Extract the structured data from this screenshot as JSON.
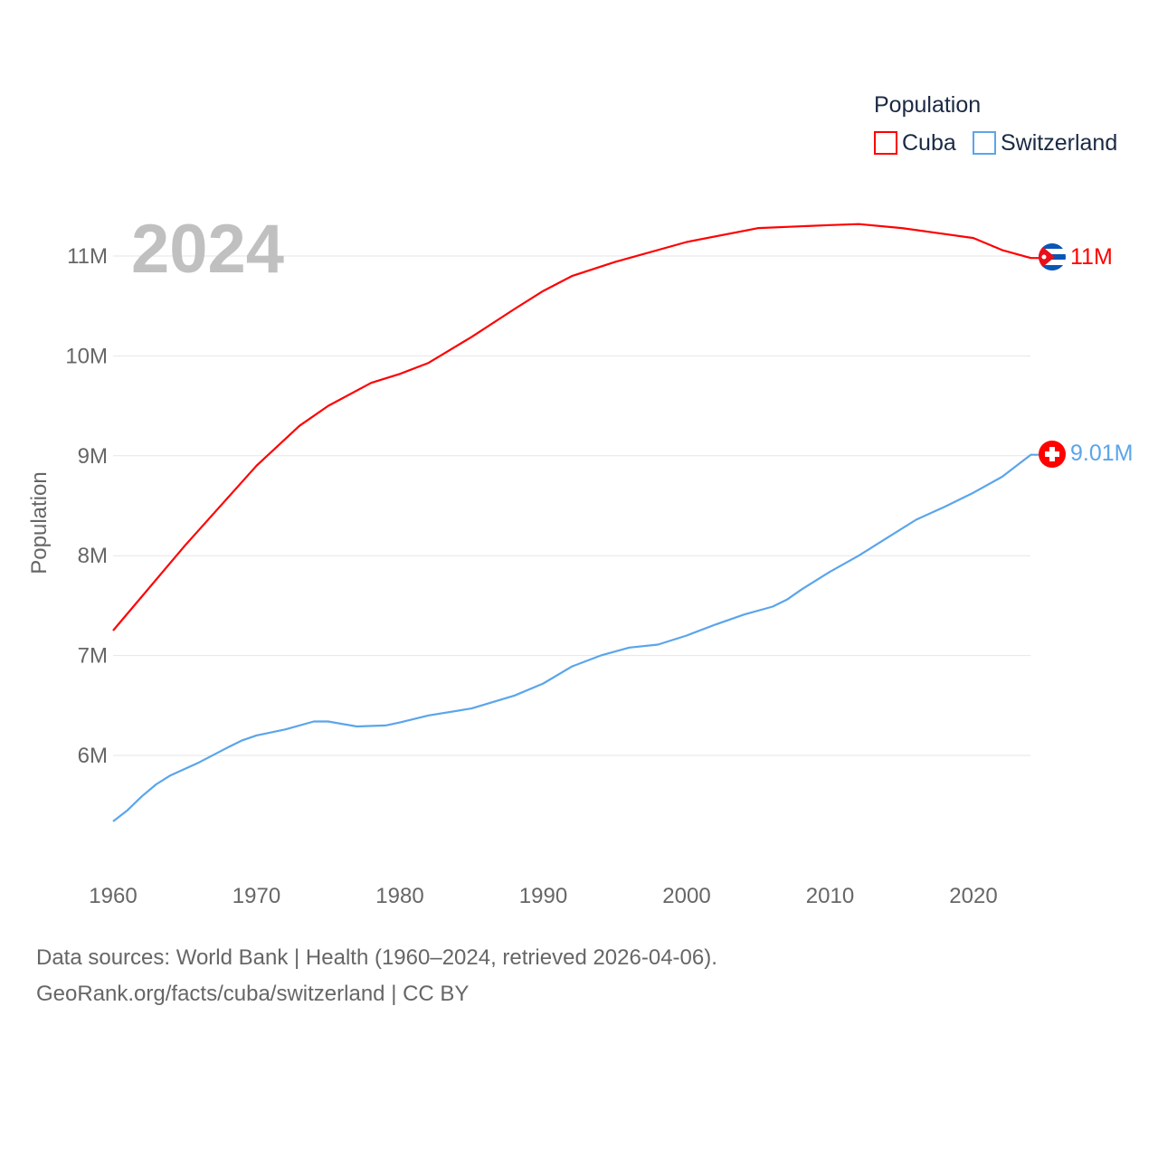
{
  "chart_data": {
    "type": "line",
    "year_label": "2024",
    "ylabel": "Population",
    "xlabel": "",
    "xlim": [
      1960,
      2024
    ],
    "ylim": [
      5.0,
      11.5
    ],
    "x_ticks": [
      "1960",
      "1970",
      "1980",
      "1990",
      "2000",
      "2010",
      "2020"
    ],
    "y_ticks": [
      {
        "value": 6,
        "label": "6M"
      },
      {
        "value": 7,
        "label": "7M"
      },
      {
        "value": 8,
        "label": "8M"
      },
      {
        "value": 9,
        "label": "9M"
      },
      {
        "value": 10,
        "label": "10M"
      },
      {
        "value": 11,
        "label": "11M"
      }
    ],
    "grid": true,
    "legend": {
      "title": "Population",
      "placement": "top-right"
    },
    "series": [
      {
        "name": "Cuba",
        "color": "#ff0000",
        "end_label": "11M",
        "flag": "cuba-flag",
        "x": [
          1960,
          1965,
          1970,
          1973,
          1975,
          1978,
          1980,
          1982,
          1985,
          1988,
          1990,
          1992,
          1995,
          2000,
          2005,
          2010,
          2012,
          2015,
          2018,
          2020,
          2022,
          2024
        ],
        "values": [
          7.25,
          8.1,
          8.9,
          9.3,
          9.5,
          9.73,
          9.82,
          9.93,
          10.19,
          10.47,
          10.65,
          10.8,
          10.94,
          11.14,
          11.28,
          11.31,
          11.32,
          11.28,
          11.22,
          11.18,
          11.06,
          10.98
        ]
      },
      {
        "name": "Switzerland",
        "color": "#5aa5eb",
        "end_label": "9.01M",
        "flag": "switzerland-flag",
        "x": [
          1960,
          1961,
          1962,
          1963,
          1964,
          1966,
          1968,
          1969,
          1970,
          1972,
          1974,
          1975,
          1977,
          1979,
          1980,
          1982,
          1985,
          1988,
          1990,
          1992,
          1994,
          1996,
          1998,
          2000,
          2002,
          2004,
          2006,
          2007,
          2008,
          2010,
          2012,
          2014,
          2016,
          2018,
          2020,
          2022,
          2024
        ],
        "values": [
          5.34,
          5.45,
          5.59,
          5.71,
          5.8,
          5.93,
          6.08,
          6.15,
          6.2,
          6.26,
          6.34,
          6.34,
          6.29,
          6.3,
          6.33,
          6.4,
          6.47,
          6.6,
          6.72,
          6.89,
          7.0,
          7.08,
          7.11,
          7.2,
          7.31,
          7.41,
          7.49,
          7.56,
          7.66,
          7.84,
          8.0,
          8.18,
          8.36,
          8.49,
          8.63,
          8.79,
          9.01
        ]
      }
    ]
  },
  "footer": {
    "line1": "Data sources: World Bank | Health (1960–2024, retrieved 2026-04-06).",
    "line2": "GeoRank.org/facts/cuba/switzerland | CC BY"
  }
}
